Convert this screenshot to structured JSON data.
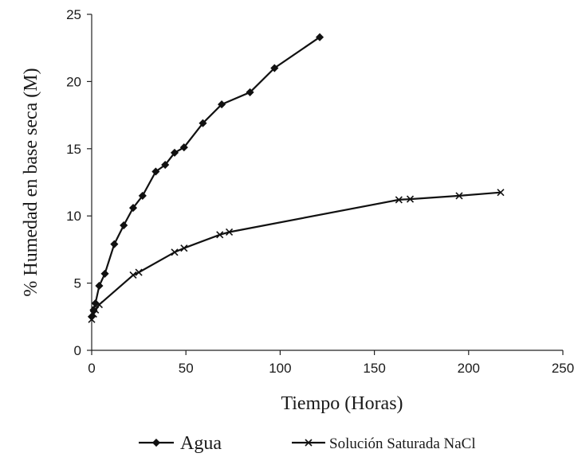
{
  "chart_data": {
    "type": "line",
    "xlabel": "Tiempo (Horas)",
    "ylabel": "% Humedad en base seca (M)",
    "xlim": [
      0,
      250
    ],
    "ylim": [
      0,
      25
    ],
    "xticks": [
      "0",
      "50",
      "100",
      "150",
      "200",
      "250"
    ],
    "yticks": [
      "0",
      "5",
      "10",
      "15",
      "20",
      "25"
    ],
    "grid": false,
    "legend_position": "bottom",
    "series": [
      {
        "name": "Agua",
        "marker": "diamond",
        "color": "#111111",
        "points": [
          [
            0,
            2.5
          ],
          [
            1,
            3.0
          ],
          [
            2,
            3.5
          ],
          [
            4,
            4.8
          ],
          [
            7,
            5.7
          ],
          [
            12,
            7.9
          ],
          [
            17,
            9.3
          ],
          [
            22,
            10.6
          ],
          [
            27,
            11.5
          ],
          [
            34,
            13.3
          ],
          [
            39,
            13.8
          ],
          [
            44,
            14.7
          ],
          [
            49,
            15.1
          ],
          [
            59,
            16.9
          ],
          [
            69,
            18.3
          ],
          [
            84,
            19.2
          ],
          [
            97,
            21.0
          ],
          [
            121,
            23.3
          ]
        ]
      },
      {
        "name": "Solución Saturada NaCl",
        "marker": "x",
        "color": "#111111",
        "points": [
          [
            0,
            2.3
          ],
          [
            1,
            2.7
          ],
          [
            2,
            3.0
          ],
          [
            4,
            3.4
          ],
          [
            22,
            5.6
          ],
          [
            25,
            5.8
          ],
          [
            44,
            7.3
          ],
          [
            49,
            7.6
          ],
          [
            68,
            8.6
          ],
          [
            73,
            8.8
          ],
          [
            163,
            11.2
          ],
          [
            169,
            11.25
          ],
          [
            195,
            11.5
          ],
          [
            217,
            11.75
          ]
        ]
      }
    ]
  }
}
